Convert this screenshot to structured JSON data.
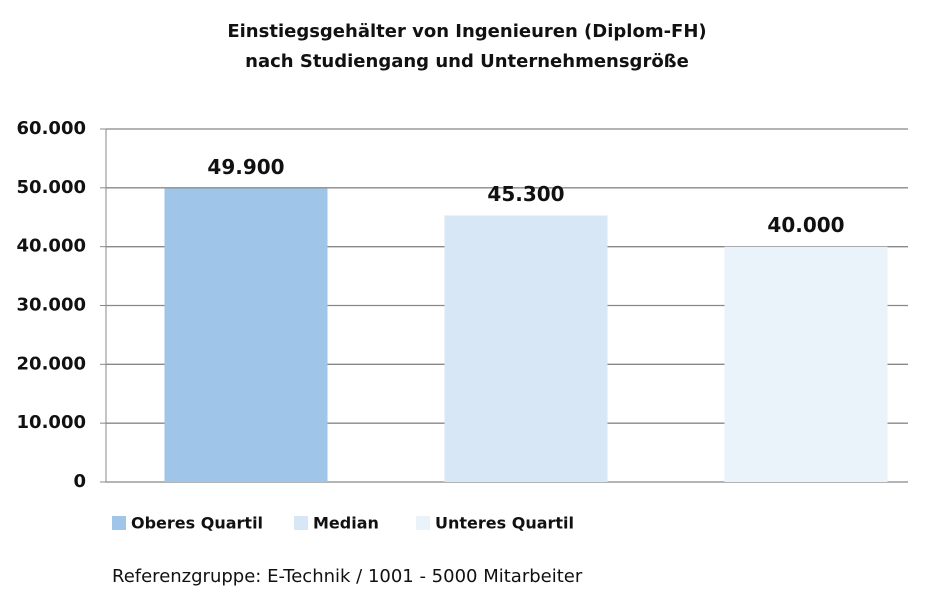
{
  "chart_data": {
    "type": "bar",
    "title": "Einstiegsgehälter von Ingenieuren (Diplom-FH)",
    "subtitle": "nach Studiengang und Unternehmensgröße",
    "categories": [
      null
    ],
    "series": [
      {
        "name": "Oberes Quartil",
        "color": "#9fc5e8",
        "values": [
          49900
        ],
        "value_labels": [
          "49.900"
        ]
      },
      {
        "name": "Median",
        "color": "#d7e7f5",
        "values": [
          45300
        ],
        "value_labels": [
          "45.300"
        ]
      },
      {
        "name": "Unteres Quartil",
        "color": "#eaf2fa",
        "values": [
          40000
        ],
        "value_labels": [
          "40.000"
        ]
      }
    ],
    "ylim": [
      0,
      60000
    ],
    "yticks": [
      0,
      {
        "value": 10000,
        "label": "10.000"
      },
      {
        "value": 20000,
        "label": "20.000"
      },
      {
        "value": 30000,
        "label": "30.000"
      },
      {
        "value": 40000,
        "label": "40.000"
      },
      {
        "value": 50000,
        "label": "50.000"
      },
      {
        "value": 60000,
        "label": "60.000"
      }
    ],
    "grid": true,
    "legend": "bottom",
    "annotation": "Referenzgruppe: E-Technik / 1001 - 5000 Mitarbeiter"
  }
}
